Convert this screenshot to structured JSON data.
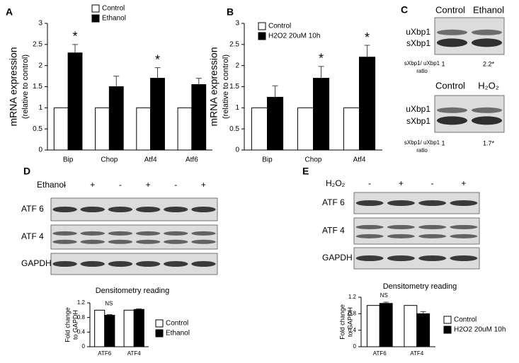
{
  "panel_labels": [
    "A",
    "B",
    "C",
    "D",
    "E"
  ],
  "chart_data": [
    {
      "type": "bar",
      "ylabel": "mRNA expression",
      "ylabel2": "(relative to control)",
      "categories": [
        "Bip",
        "Chop",
        "Atf4",
        "Atf6"
      ],
      "series": [
        {
          "name": "Control",
          "color": "#ffffff",
          "values": [
            1,
            1,
            1,
            1
          ]
        },
        {
          "name": "Ethanol",
          "color": "#000000",
          "values": [
            2.3,
            1.5,
            1.7,
            1.55
          ],
          "errors": [
            0.2,
            0.25,
            0.25,
            0.15
          ],
          "significance": [
            "*",
            null,
            "*",
            null
          ]
        }
      ],
      "ylim": [
        0,
        3
      ],
      "yticks": [
        0,
        0.5,
        1,
        1.5,
        2,
        2.5,
        3
      ],
      "legend": "upper-left"
    },
    {
      "type": "bar",
      "ylabel": "mRNA expression",
      "ylabel2": "(relative to control)",
      "categories": [
        "Bip",
        "Chop",
        "Atf4"
      ],
      "series": [
        {
          "name": "Control",
          "color": "#ffffff",
          "values": [
            1,
            1,
            1
          ]
        },
        {
          "name": "H2O2 20uM 10h",
          "color": "#000000",
          "values": [
            1.25,
            1.7,
            2.2
          ],
          "errors": [
            0.27,
            0.28,
            0.28
          ],
          "significance": [
            null,
            "*",
            "*"
          ]
        }
      ],
      "ylim": [
        0,
        3
      ],
      "yticks": [
        0,
        0.5,
        1,
        1.5,
        2,
        2.5,
        3
      ],
      "legend": "upper-left"
    },
    {
      "type": "bar",
      "title": "Densitometry reading",
      "ylabel": "Fold change",
      "ylabel2": "to GAPDH",
      "categories": [
        "ATF6",
        "ATF4"
      ],
      "series": [
        {
          "name": "Control",
          "color": "#ffffff",
          "values": [
            1,
            1
          ]
        },
        {
          "name": "Ethanol",
          "color": "#000000",
          "values": [
            0.86,
            1.02
          ],
          "errors": [
            0.02,
            0.02
          ]
        }
      ],
      "group_annotations": [
        "NS",
        null
      ],
      "ylim": [
        0,
        1.2
      ],
      "yticks": [
        0,
        0.4,
        0.8,
        1.2
      ],
      "legend": "right"
    },
    {
      "type": "bar",
      "title": "Densitometry reading",
      "ylabel": "Fold change",
      "ylabel2": "to GAPDH",
      "categories": [
        "ATF6",
        "ATF4"
      ],
      "series": [
        {
          "name": "Control",
          "color": "#ffffff",
          "values": [
            1,
            1
          ]
        },
        {
          "name": "H2O2 20uM 10h",
          "color": "#000000",
          "values": [
            1.05,
            0.8
          ],
          "errors": [
            0.03,
            0.05
          ]
        }
      ],
      "group_annotations": [
        "NS",
        null
      ],
      "ylim": [
        0,
        1.2
      ],
      "yticks": [
        0,
        0.4,
        0.8,
        1.2
      ],
      "legend": "right"
    }
  ],
  "panel_c": [
    {
      "columns": [
        "Control",
        "Ethanol"
      ],
      "bands": [
        "uXbp1",
        "sXbp1"
      ],
      "ratio_label": "sXbp1/ uXbp1",
      "ratio_label2": "ratio",
      "ratios": [
        "1",
        "2.2*"
      ]
    },
    {
      "columns": [
        "Control",
        "H₂O₂"
      ],
      "bands": [
        "uXbp1",
        "sXbp1"
      ],
      "ratio_label": "sXbp1/ uXbp1",
      "ratio_label2": "ratio",
      "ratios": [
        "1",
        "1.7*"
      ]
    }
  ],
  "panel_d": {
    "treatment": "Ethanol",
    "lanes": [
      "-",
      "+",
      "-",
      "+",
      "-",
      "+"
    ],
    "rows": [
      "ATF 6",
      "ATF 4",
      "GAPDH"
    ]
  },
  "panel_e": {
    "treatment": "H₂O₂",
    "lanes": [
      "-",
      "+",
      "-",
      "+"
    ],
    "rows": [
      "ATF 6",
      "ATF 4",
      "GAPDH"
    ]
  }
}
